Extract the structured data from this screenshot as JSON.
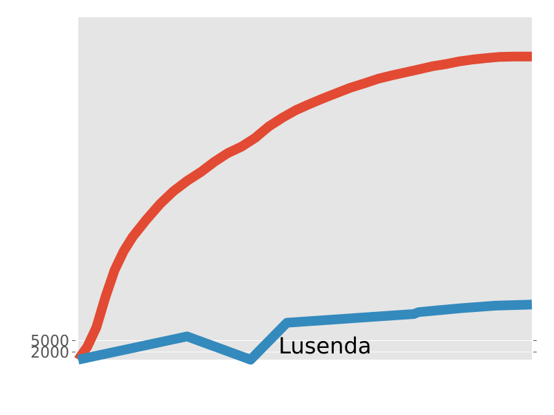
{
  "chart_data": {
    "type": "line",
    "title": "",
    "xlabel": "",
    "ylabel": "",
    "grid": true,
    "background": "#e5e5e5",
    "xlim": [
      0,
      100
    ],
    "ylim": [
      0,
      90000
    ],
    "x_tick_labels": [],
    "y_ticks": [
      {
        "value": 2000,
        "label": "2000"
      },
      {
        "value": 5000,
        "label": "5000"
      }
    ],
    "annotation": {
      "text": "Lusenda",
      "x": 54.4,
      "y": 1600
    },
    "series": [
      {
        "color": "#e24a33",
        "x": [
          0,
          2,
          4,
          6,
          8,
          10,
          12,
          15,
          18,
          21,
          24,
          27,
          30,
          33,
          36,
          39,
          42,
          45,
          48,
          51,
          54,
          57,
          60,
          63,
          66,
          69,
          72,
          75,
          78,
          81,
          84,
          87,
          90,
          93,
          96,
          100
        ],
        "y": [
          0,
          3400,
          8500,
          16500,
          23500,
          28500,
          32300,
          36800,
          40900,
          44300,
          47000,
          49300,
          52000,
          54300,
          56000,
          58300,
          61300,
          63600,
          65600,
          67200,
          68700,
          70100,
          71500,
          72600,
          73800,
          74700,
          75500,
          76300,
          77100,
          77700,
          78400,
          78900,
          79300,
          79600,
          79700,
          79700
        ]
      },
      {
        "color": "#348abd",
        "x": [
          0,
          24,
          38,
          46,
          74,
          75,
          84,
          92,
          100
        ],
        "y": [
          0,
          6100,
          0,
          9700,
          12000,
          12500,
          13500,
          14200,
          14500
        ]
      }
    ]
  }
}
